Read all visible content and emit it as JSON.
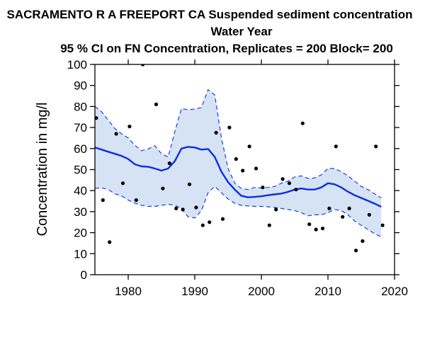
{
  "chart_data": {
    "type": "line",
    "title_lines": [
      "SACRAMENTO R A FREEPORT CA   Suspended sediment concentration",
      "Water Year",
      "95 % CI on FN Concentration, Replicates = 200 Block= 200"
    ],
    "xlabel": "",
    "ylabel": "Concentration in mg/l",
    "xlim": [
      1975,
      2020
    ],
    "ylim": [
      0,
      100
    ],
    "x_ticks": [
      1980,
      1990,
      2000,
      2010,
      2020
    ],
    "y_ticks": [
      0,
      10,
      20,
      30,
      40,
      50,
      60,
      70,
      80,
      90,
      100
    ],
    "grid": false,
    "colors": {
      "fn_line": "#0a2ee0",
      "ci_fill": "#d6e3f5",
      "ci_line": "#1a3ee8",
      "points": "#000000"
    },
    "series": [
      {
        "x": [
          1975,
          1976,
          1977,
          1978,
          1979,
          1980,
          1981,
          1982,
          1983,
          1984,
          1985,
          1986,
          1987,
          1988,
          1989,
          1990,
          1991,
          1992,
          1993,
          1994,
          1995,
          1996,
          1997,
          1998,
          1999,
          2000,
          2001,
          2002,
          2003,
          2004,
          2005,
          2006,
          2007,
          2008,
          2009,
          2010,
          2011,
          2012,
          2013,
          2014,
          2015,
          2016,
          2017,
          2018
        ],
        "values": [
          60.5,
          59.5,
          58.5,
          57.5,
          56.5,
          55.0,
          52.5,
          51.5,
          51.3,
          50.5,
          49.5,
          50.5,
          54.0,
          60.0,
          60.8,
          60.5,
          59.5,
          59.8,
          56.0,
          49.0,
          44.0,
          40.5,
          37.5,
          36.8,
          37.0,
          37.3,
          37.8,
          38.2,
          38.6,
          39.4,
          40.5,
          41.0,
          40.5,
          40.5,
          41.5,
          43.5,
          43.0,
          41.5,
          39.5,
          37.8,
          36.5,
          35.2,
          33.8,
          32.3
        ]
      },
      {
        "x": [
          1975,
          1976,
          1977,
          1978,
          1979,
          1980,
          1981,
          1982,
          1983,
          1984,
          1985,
          1986,
          1987,
          1988,
          1989,
          1990,
          1991,
          1992,
          1993,
          1994,
          1995,
          1996,
          1997,
          1998,
          1999,
          2000,
          2001,
          2002,
          2003,
          2004,
          2005,
          2006,
          2007,
          2008,
          2009,
          2010,
          2011,
          2012,
          2013,
          2014,
          2015,
          2016,
          2017,
          2018
        ],
        "values": [
          80.0,
          77.5,
          73.5,
          69.5,
          67.0,
          65.0,
          61.5,
          59.0,
          59.8,
          61.3,
          57.5,
          56.0,
          68.0,
          79.0,
          78.5,
          78.8,
          79.5,
          88.0,
          85.5,
          65.0,
          50.5,
          43.5,
          41.0,
          40.5,
          41.5,
          41.2,
          41.5,
          42.0,
          43.5,
          44.5,
          46.5,
          47.0,
          45.8,
          46.0,
          47.5,
          50.5,
          50.5,
          49.0,
          47.0,
          44.5,
          42.0,
          40.5,
          38.5,
          36.5
        ]
      },
      {
        "x": [
          1975,
          1976,
          1977,
          1978,
          1979,
          1980,
          1981,
          1982,
          1983,
          1984,
          1985,
          1986,
          1987,
          1988,
          1989,
          1990,
          1991,
          1992,
          1993,
          1994,
          1995,
          1996,
          1997,
          1998,
          1999,
          2000,
          2001,
          2002,
          2003,
          2004,
          2005,
          2006,
          2007,
          2008,
          2009,
          2010,
          2011,
          2012,
          2013,
          2014,
          2015,
          2016,
          2017,
          2018
        ],
        "values": [
          41.0,
          41.3,
          40.5,
          38.5,
          37.5,
          35.5,
          34.0,
          33.0,
          32.5,
          32.5,
          33.0,
          33.5,
          33.0,
          31.5,
          27.5,
          27.0,
          30.5,
          39.0,
          42.0,
          39.0,
          36.0,
          34.0,
          33.0,
          32.7,
          32.5,
          32.5,
          32.3,
          32.0,
          31.5,
          31.0,
          30.5,
          29.5,
          28.0,
          28.5,
          28.5,
          29.5,
          31.0,
          30.5,
          28.5,
          25.5,
          23.5,
          21.5,
          19.5,
          18.0
        ]
      },
      {
        "x": [
          1975.2,
          1976.2,
          1977.2,
          1978.2,
          1979.2,
          1980.2,
          1981.2,
          1982.2,
          1984.2,
          1985.2,
          1986.2,
          1987.2,
          1988.2,
          1989.2,
          1990.2,
          1991.2,
          1992.2,
          1993.2,
          1994.2,
          1995.2,
          1996.2,
          1997.2,
          1998.2,
          1999.2,
          2000.2,
          2001.2,
          2002.2,
          2003.2,
          2004.2,
          2005.2,
          2006.2,
          2007.2,
          2008.2,
          2009.2,
          2010.2,
          2011.2,
          2012.2,
          2013.2,
          2014.2,
          2015.2,
          2016.2,
          2017.2,
          2018.2
        ],
        "values": [
          74.5,
          35.5,
          15.5,
          67.0,
          43.5,
          70.5,
          35.5,
          100.0,
          81.0,
          41.0,
          53.0,
          31.5,
          31.0,
          43.0,
          32.0,
          23.5,
          25.0,
          67.5,
          26.5,
          70.0,
          55.0,
          49.5,
          61.0,
          50.5,
          41.5,
          23.5,
          31.0,
          45.5,
          43.5,
          40.5,
          72.0,
          24.0,
          21.5,
          22.0,
          31.5,
          61.0,
          27.5,
          31.5,
          11.5,
          16.0,
          28.5,
          61.0,
          23.5
        ]
      }
    ]
  }
}
